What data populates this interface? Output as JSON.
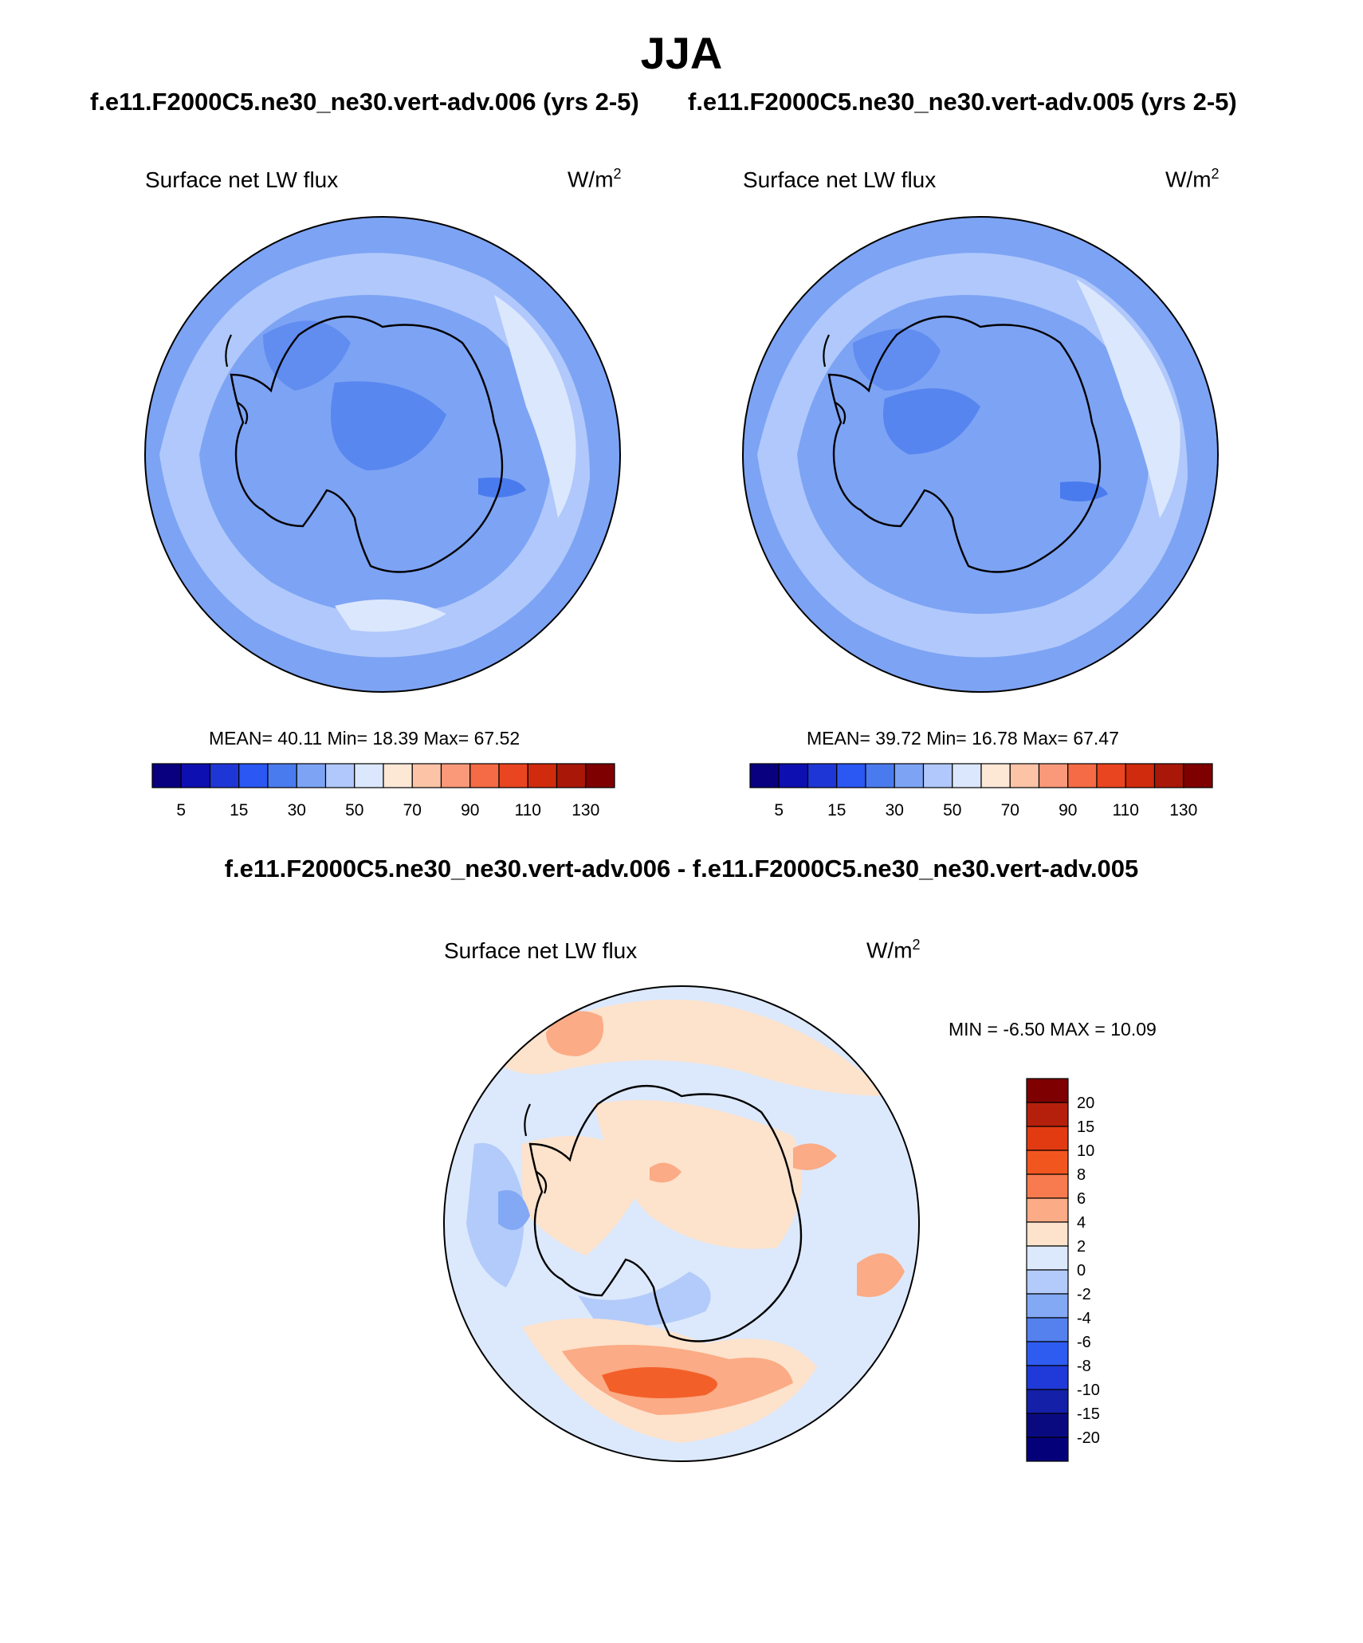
{
  "page_title": "JJA",
  "panels": [
    {
      "run_title": "f.e11.F2000C5.ne30_ne30.vert-adv.006 (yrs 2-5)",
      "variable": "Surface net LW flux",
      "units_base": "W/m",
      "units_exp": "2",
      "stats": "MEAN=  40.11  Min=  18.39  Max=  67.52"
    },
    {
      "run_title": "f.e11.F2000C5.ne30_ne30.vert-adv.005 (yrs 2-5)",
      "variable": "Surface net LW flux",
      "units_base": "W/m",
      "units_exp": "2",
      "stats": "MEAN=  39.72  Min=  16.78  Max=  67.47"
    }
  ],
  "difference_panel": {
    "title": "f.e11.F2000C5.ne30_ne30.vert-adv.006 - f.e11.F2000C5.ne30_ne30.vert-adv.005",
    "variable": "Surface net LW flux",
    "units_base": "W/m",
    "units_exp": "2",
    "stats": "MIN =  -6.50 MAX =  10.09"
  },
  "chart_data": [
    {
      "type": "heatmap",
      "projection": "south polar stereographic",
      "title": "f.e11.F2000C5.ne30_ne30.vert-adv.006 (yrs 2-5)",
      "variable": "Surface net LW flux",
      "units": "W/m^2",
      "mean": 40.11,
      "min": 18.39,
      "max": 67.52,
      "colorbar_orientation": "horizontal",
      "colorbar_ticks": [
        "5",
        "15",
        "30",
        "50",
        "70",
        "90",
        "110",
        "130"
      ],
      "colorbar_colors": [
        "#08007e",
        "#0e0fb0",
        "#1f36d6",
        "#2b57f2",
        "#4a7bee",
        "#7da3f4",
        "#b0c8fb",
        "#dbe7fd",
        "#fde8d6",
        "#fcc3a6",
        "#f9997a",
        "#f56b45",
        "#e94520",
        "#cf2b0c",
        "#a91708",
        "#7f0000"
      ]
    },
    {
      "type": "heatmap",
      "projection": "south polar stereographic",
      "title": "f.e11.F2000C5.ne30_ne30.vert-adv.005 (yrs 2-5)",
      "variable": "Surface net LW flux",
      "units": "W/m^2",
      "mean": 39.72,
      "min": 16.78,
      "max": 67.47,
      "colorbar_orientation": "horizontal",
      "colorbar_ticks": [
        "5",
        "15",
        "30",
        "50",
        "70",
        "90",
        "110",
        "130"
      ],
      "colorbar_colors": [
        "#08007e",
        "#0e0fb0",
        "#1f36d6",
        "#2b57f2",
        "#4a7bee",
        "#7da3f4",
        "#b0c8fb",
        "#dbe7fd",
        "#fde8d6",
        "#fcc3a6",
        "#f9997a",
        "#f56b45",
        "#e94520",
        "#cf2b0c",
        "#a91708",
        "#7f0000"
      ]
    },
    {
      "type": "heatmap",
      "projection": "south polar stereographic",
      "title": "f.e11.F2000C5.ne30_ne30.vert-adv.006 - f.e11.F2000C5.ne30_ne30.vert-adv.005",
      "variable": "Surface net LW flux",
      "units": "W/m^2",
      "min": -6.5,
      "max": 10.09,
      "colorbar_orientation": "vertical",
      "colorbar_ticks": [
        "20",
        "15",
        "10",
        "8",
        "6",
        "4",
        "2",
        "0",
        "-2",
        "-4",
        "-6",
        "-8",
        "-10",
        "-15",
        "-20"
      ],
      "colorbar_colors": [
        "#7f0000",
        "#b5200c",
        "#e23b12",
        "#f2561f",
        "#f77b4e",
        "#fbab85",
        "#fde2cc",
        "#dce9fc",
        "#b3cbfa",
        "#83a8f4",
        "#5581ee",
        "#2f5cf0",
        "#1f3ad8",
        "#1420a8",
        "#0a0a80",
        "#04007a"
      ]
    },
    {
      "type": "annotation",
      "note": "colorbar_colors above are listed top-to-bottom for the vertical bar"
    }
  ]
}
